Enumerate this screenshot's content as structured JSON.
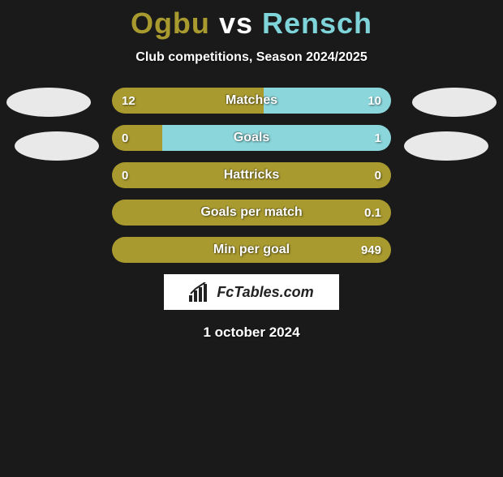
{
  "title": {
    "player1": "Ogbu",
    "vs": "vs",
    "player2": "Rensch",
    "color1": "#a89a2e",
    "color_vs": "#ffffff",
    "color2": "#7fd4d9"
  },
  "subtitle": "Club competitions, Season 2024/2025",
  "colors": {
    "left": "#a99a2f",
    "right": "#8bd6db",
    "avatar": "#e9e9e9"
  },
  "bars": [
    {
      "label": "Matches",
      "left": "12",
      "right": "10",
      "left_pct": 54.5,
      "right_pct": 45.5
    },
    {
      "label": "Goals",
      "left": "0",
      "right": "1",
      "left_pct": 18.0,
      "right_pct": 82.0
    },
    {
      "label": "Hattricks",
      "left": "0",
      "right": "0",
      "left_pct": 100,
      "right_pct": 0
    },
    {
      "label": "Goals per match",
      "left": "",
      "right": "0.1",
      "left_pct": 100,
      "right_pct": 0
    },
    {
      "label": "Min per goal",
      "left": "",
      "right": "949",
      "left_pct": 100,
      "right_pct": 0
    }
  ],
  "logo": {
    "text": "FcTables.com"
  },
  "date": "1 october 2024"
}
